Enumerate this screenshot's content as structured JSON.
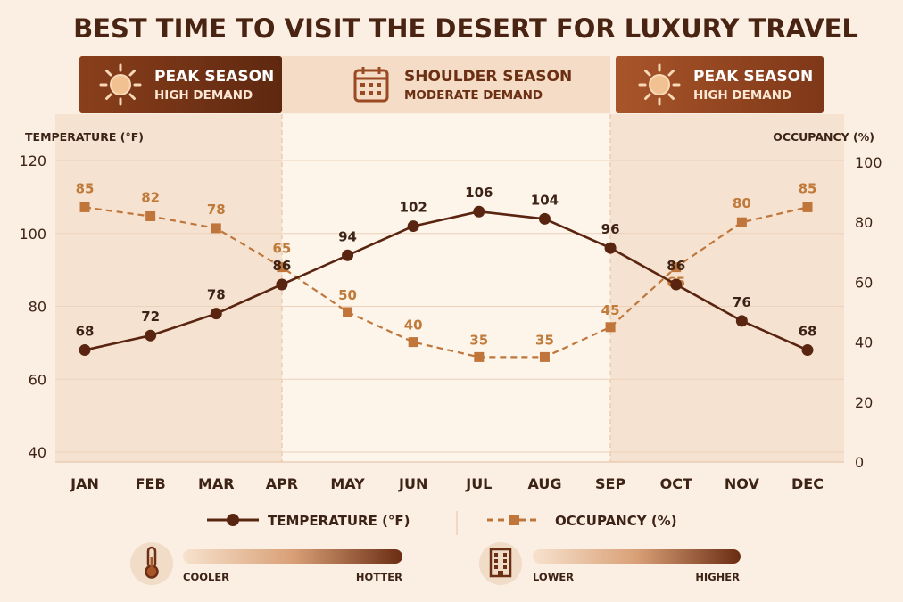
{
  "title": "BEST TIME TO VISIT THE DESERT FOR LUXURY TRAVEL",
  "bands": [
    {
      "label": "PEAK SEASON",
      "sublabel": "HIGH DEMAND",
      "icon": "sun-icon"
    },
    {
      "label": "SHOULDER SEASON",
      "sublabel": "MODERATE DEMAND",
      "icon": "calendar-icon"
    },
    {
      "label": "PEAK SEASON",
      "sublabel": "HIGH DEMAND",
      "icon": "sun-icon"
    }
  ],
  "colors": {
    "temperature": "#5a2510",
    "occupancy": "#c0763a",
    "peak_band": "#6b2f14",
    "peak_band_right": "#9a4a22",
    "background": "#fbeee2"
  },
  "chart_data": {
    "type": "line",
    "categories": [
      "JAN",
      "FEB",
      "MAR",
      "APR",
      "MAY",
      "JUN",
      "JUL",
      "AUG",
      "SEP",
      "OCT",
      "NOV",
      "DEC"
    ],
    "series": [
      {
        "name": "TEMPERATURE (°F)",
        "axis": "left",
        "values": [
          68,
          72,
          78,
          86,
          94,
          102,
          106,
          104,
          96,
          86,
          76,
          68
        ]
      },
      {
        "name": "OCCUPANCY (%)",
        "axis": "right",
        "values": [
          85,
          82,
          78,
          65,
          50,
          40,
          35,
          35,
          45,
          65,
          80,
          85
        ]
      }
    ],
    "ylabel_left": "TEMPERATURE (°F)",
    "ylabel_right": "OCCUPANCY (%)",
    "ylim_left": [
      40,
      120
    ],
    "yticks_left": [
      40,
      60,
      80,
      100,
      120
    ],
    "ylim_right": [
      0,
      100
    ],
    "yticks_right": [
      0,
      20,
      40,
      60,
      80,
      100
    ],
    "grid": true,
    "legend_position": "bottom"
  },
  "scales": [
    {
      "icon": "thermometer-icon",
      "low": "COOLER",
      "high": "HOTTER"
    },
    {
      "icon": "building-icon",
      "low": "LOWER",
      "high": "HIGHER"
    }
  ]
}
